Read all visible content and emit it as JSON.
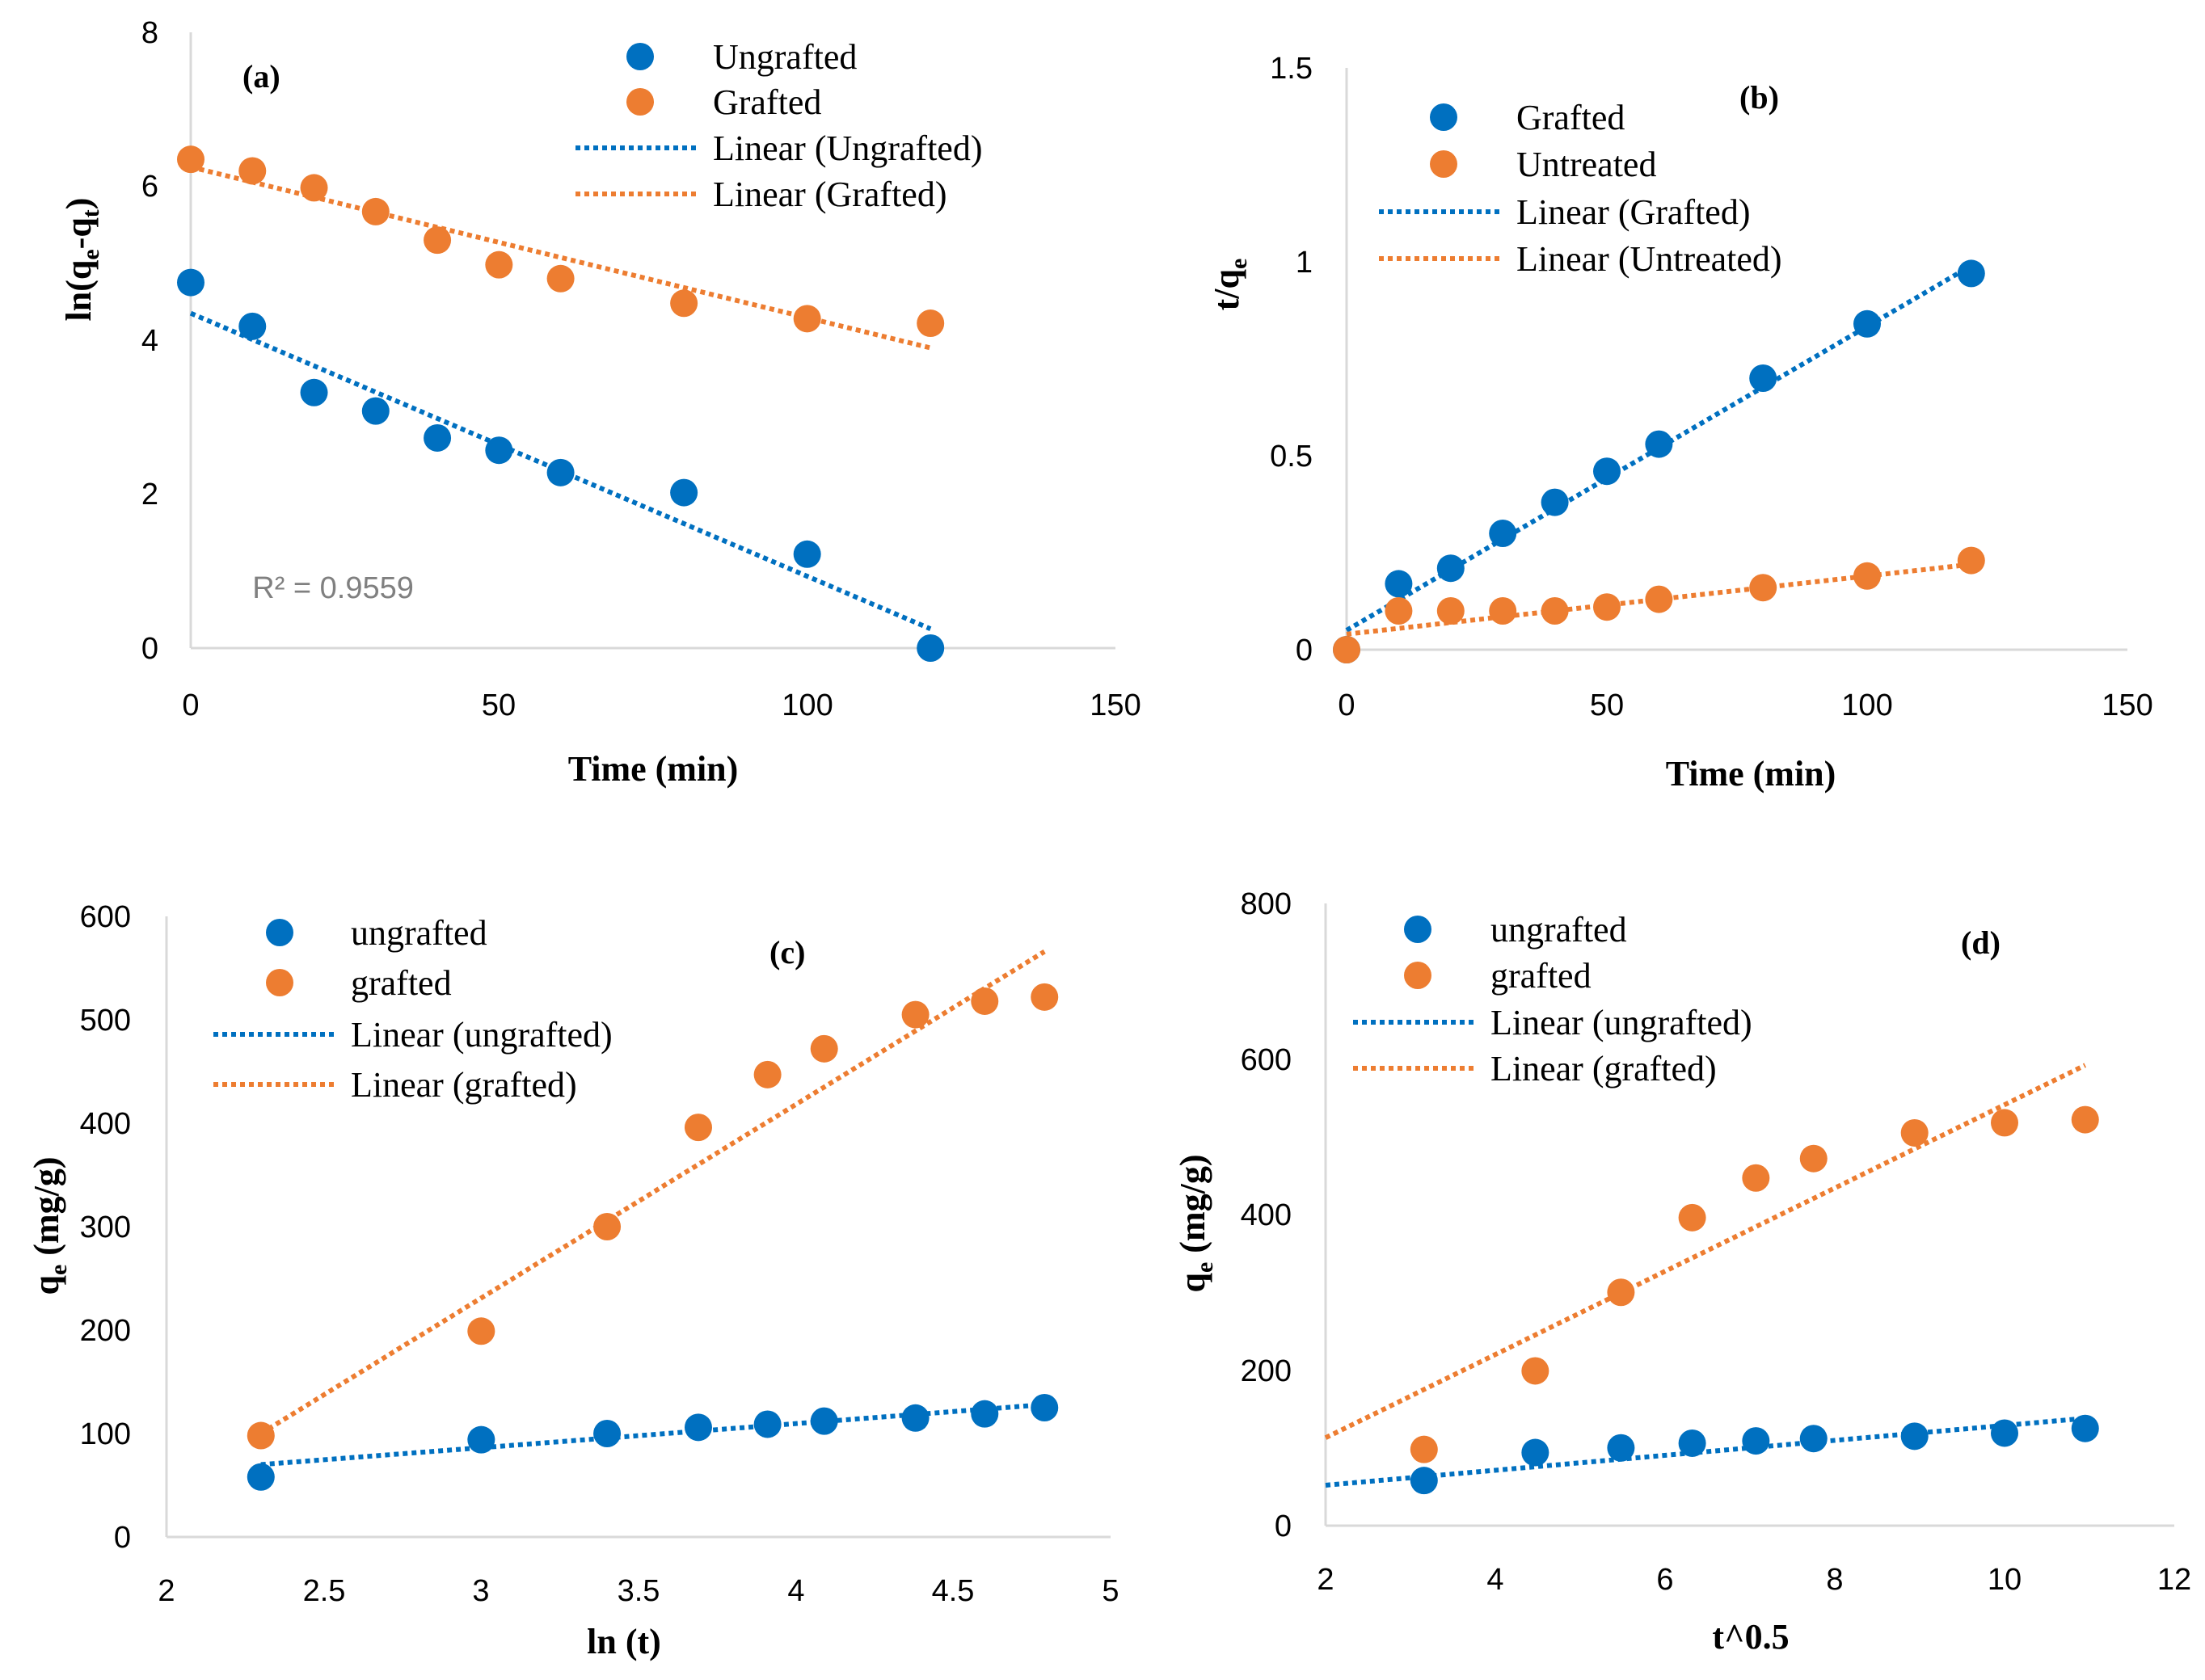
{
  "colors": {
    "blue": "#0070C0",
    "orange": "#ED7D31"
  },
  "chart_data": [
    {
      "type": "scatter",
      "label": "(a)",
      "xlabel": "Time (min)",
      "ylabel": "ln(q",
      "ylabel_sub1": "e",
      "ylabel_mid": "-q",
      "ylabel_sub2": "t",
      "ylabel_end": ")",
      "xlim": [
        0,
        150
      ],
      "ylim": [
        0,
        8
      ],
      "xticks": [
        0,
        50,
        100,
        150
      ],
      "yticks": [
        0,
        2,
        4,
        6,
        8
      ],
      "annotation": "R² = 0.9559",
      "annotation_at": [
        10,
        0.65
      ],
      "legend": [
        {
          "text": "Ungrafted",
          "kind": "marker",
          "color": "#0070C0"
        },
        {
          "text": "Grafted",
          "kind": "marker",
          "color": "#ED7D31"
        },
        {
          "text": "Linear (Ungrafted)",
          "kind": "line",
          "color": "#0070C0"
        },
        {
          "text": "Linear (Grafted)",
          "kind": "line",
          "color": "#ED7D31"
        }
      ],
      "series": [
        {
          "name": "Ungrafted",
          "color": "#0070C0",
          "x": [
            0,
            10,
            20,
            30,
            40,
            50,
            60,
            80,
            100,
            120
          ],
          "y": [
            4.75,
            4.18,
            3.32,
            3.08,
            2.73,
            2.57,
            2.28,
            2.02,
            1.22,
            0.0
          ],
          "trend": [
            [
              0,
              4.35
            ],
            [
              120,
              0.25
            ]
          ]
        },
        {
          "name": "Grafted",
          "color": "#ED7D31",
          "x": [
            0,
            10,
            20,
            30,
            40,
            50,
            60,
            80,
            100,
            120
          ],
          "y": [
            6.35,
            6.2,
            5.98,
            5.67,
            5.3,
            4.98,
            4.8,
            4.48,
            4.28,
            4.22
          ],
          "trend": [
            [
              0,
              6.25
            ],
            [
              120,
              3.9
            ]
          ]
        }
      ]
    },
    {
      "type": "scatter",
      "label": "(b)",
      "xlabel": "Time (min)",
      "ylabel": "t/q",
      "ylabel_sub1": "e",
      "xlim": [
        0,
        150
      ],
      "ylim": [
        0,
        1.5
      ],
      "xticks": [
        0,
        50,
        100,
        150
      ],
      "yticks": [
        0,
        0.5,
        1,
        1.5
      ],
      "legend": [
        {
          "text": "Grafted",
          "kind": "marker",
          "color": "#0070C0"
        },
        {
          "text": "Untreated",
          "kind": "marker",
          "color": "#ED7D31"
        },
        {
          "text": "Linear (Grafted)",
          "kind": "line",
          "color": "#0070C0"
        },
        {
          "text": "Linear (Untreated)",
          "kind": "line",
          "color": "#ED7D31"
        }
      ],
      "series": [
        {
          "name": "Grafted",
          "color": "#0070C0",
          "x": [
            0,
            10,
            20,
            30,
            40,
            50,
            60,
            80,
            100,
            120
          ],
          "y": [
            0.0,
            0.17,
            0.21,
            0.3,
            0.38,
            0.46,
            0.53,
            0.7,
            0.84,
            0.97
          ],
          "trend": [
            [
              0,
              0.05
            ],
            [
              120,
              0.99
            ]
          ]
        },
        {
          "name": "Untreated",
          "color": "#ED7D31",
          "x": [
            0,
            10,
            20,
            30,
            40,
            50,
            60,
            80,
            100,
            120
          ],
          "y": [
            0.0,
            0.1,
            0.1,
            0.1,
            0.1,
            0.11,
            0.13,
            0.16,
            0.19,
            0.23
          ],
          "trend": [
            [
              0,
              0.04
            ],
            [
              120,
              0.22
            ]
          ]
        }
      ]
    },
    {
      "type": "scatter",
      "label": "(c)",
      "xlabel": "ln (t)",
      "ylabel": "q",
      "ylabel_sub1": "e",
      "ylabel_end": " (mg/g)",
      "xlim": [
        2,
        5
      ],
      "ylim": [
        0,
        600
      ],
      "xticks": [
        2,
        2.5,
        3,
        3.5,
        4,
        4.5,
        5
      ],
      "yticks": [
        0,
        100,
        200,
        300,
        400,
        500,
        600
      ],
      "legend": [
        {
          "text": "ungrafted",
          "kind": "marker",
          "color": "#0070C0"
        },
        {
          "text": "grafted",
          "kind": "marker",
          "color": "#ED7D31"
        },
        {
          "text": "Linear (ungrafted)",
          "kind": "line",
          "color": "#0070C0"
        },
        {
          "text": "Linear (grafted)",
          "kind": "line",
          "color": "#ED7D31"
        }
      ],
      "series": [
        {
          "name": "ungrafted",
          "color": "#0070C0",
          "x": [
            2.3,
            3.0,
            3.4,
            3.69,
            3.91,
            4.09,
            4.38,
            4.6,
            4.79
          ],
          "y": [
            58,
            94,
            100,
            106,
            109,
            112,
            115,
            119,
            125
          ],
          "trend": [
            [
              2.3,
              70
            ],
            [
              4.79,
              128
            ]
          ]
        },
        {
          "name": "grafted",
          "color": "#ED7D31",
          "x": [
            2.3,
            3.0,
            3.4,
            3.69,
            3.91,
            4.09,
            4.38,
            4.6,
            4.79
          ],
          "y": [
            98,
            199,
            300,
            396,
            447,
            472,
            505,
            518,
            522
          ],
          "trend": [
            [
              2.3,
              100
            ],
            [
              4.79,
              566
            ]
          ]
        }
      ]
    },
    {
      "type": "scatter",
      "label": "(d)",
      "xlabel": "t^0.5",
      "ylabel": "q",
      "ylabel_sub1": "e",
      "ylabel_end": " (mg/g)",
      "xlim": [
        2,
        12
      ],
      "ylim": [
        0,
        800
      ],
      "xticks": [
        2,
        4,
        6,
        8,
        10,
        12
      ],
      "yticks": [
        0,
        200,
        400,
        600,
        800
      ],
      "legend": [
        {
          "text": "ungrafted",
          "kind": "marker",
          "color": "#0070C0"
        },
        {
          "text": "grafted",
          "kind": "marker",
          "color": "#ED7D31"
        },
        {
          "text": "Linear (ungrafted)",
          "kind": "line",
          "color": "#0070C0"
        },
        {
          "text": "Linear (grafted)",
          "kind": "line",
          "color": "#ED7D31"
        }
      ],
      "series": [
        {
          "name": "ungrafted",
          "color": "#0070C0",
          "x": [
            3.16,
            4.47,
            5.48,
            6.32,
            7.07,
            7.75,
            8.94,
            10.0,
            10.95
          ],
          "y": [
            58,
            94,
            100,
            106,
            109,
            112,
            115,
            119,
            125
          ],
          "trend": [
            [
              2.0,
              52
            ],
            [
              10.95,
              138
            ]
          ]
        },
        {
          "name": "grafted",
          "color": "#ED7D31",
          "x": [
            3.16,
            4.47,
            5.48,
            6.32,
            7.07,
            7.75,
            8.94,
            10.0,
            10.95
          ],
          "y": [
            98,
            199,
            300,
            396,
            447,
            472,
            505,
            518,
            522
          ],
          "trend": [
            [
              2.0,
              113
            ],
            [
              10.95,
              592
            ]
          ]
        }
      ]
    }
  ]
}
